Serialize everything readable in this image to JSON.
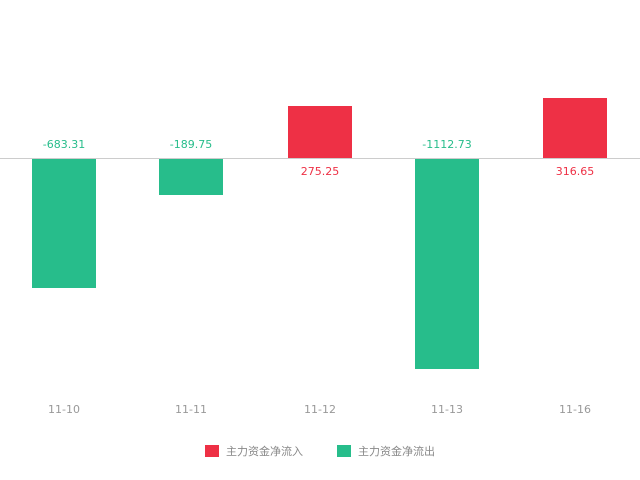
{
  "chart_data": {
    "type": "bar",
    "title": "",
    "xlabel": "",
    "ylabel": "",
    "categories": [
      "11-10",
      "11-11",
      "11-12",
      "11-13",
      "11-16"
    ],
    "values": [
      -683.31,
      -189.75,
      275.25,
      -1112.73,
      316.65
    ],
    "value_labels": [
      "-683.31",
      "-189.75",
      "275.25",
      "-1112.73",
      "316.65"
    ],
    "colors": {
      "positive": "#ee3045",
      "negative": "#27bd8b",
      "axis": "#cccccc",
      "tick_label": "#999999"
    },
    "legend_position": "bottom",
    "grid": false,
    "legend": [
      {
        "label": "主力资金净流入",
        "color": "#ee3045"
      },
      {
        "label": "主力资金净流出",
        "color": "#27bd8b"
      }
    ]
  }
}
